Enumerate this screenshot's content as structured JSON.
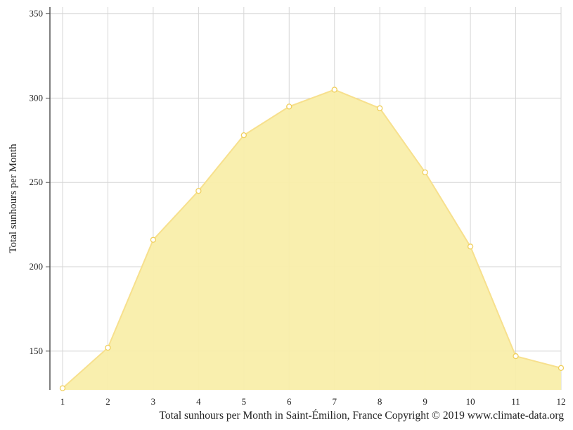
{
  "chart_data": {
    "type": "area",
    "x": [
      1,
      2,
      3,
      4,
      5,
      6,
      7,
      8,
      9,
      10,
      11,
      12
    ],
    "series": [
      {
        "values": [
          128,
          152,
          216,
          245,
          278,
          295,
          305,
          294,
          256,
          212,
          147,
          140
        ]
      }
    ],
    "ylabel": "Total sunhours per Month",
    "xlabel": "",
    "title": "",
    "caption": "Total sunhours per Month in Saint-Émilion, France Copyright © 2019 www.climate-data.org",
    "ylim": [
      127,
      354
    ],
    "xlim": [
      1,
      12
    ],
    "yticks": [
      150,
      200,
      250,
      300,
      350
    ],
    "xticks": [
      "1",
      "2",
      "3",
      "4",
      "5",
      "6",
      "7",
      "8",
      "9",
      "10",
      "11",
      "12"
    ],
    "grid": true,
    "legend": "none",
    "colors": {
      "fill": "#f9eeaa",
      "line": "#f7e08d",
      "marker_stroke": "#f0cf5c",
      "grid": "#d6d6d6",
      "axis": "#555555"
    }
  }
}
